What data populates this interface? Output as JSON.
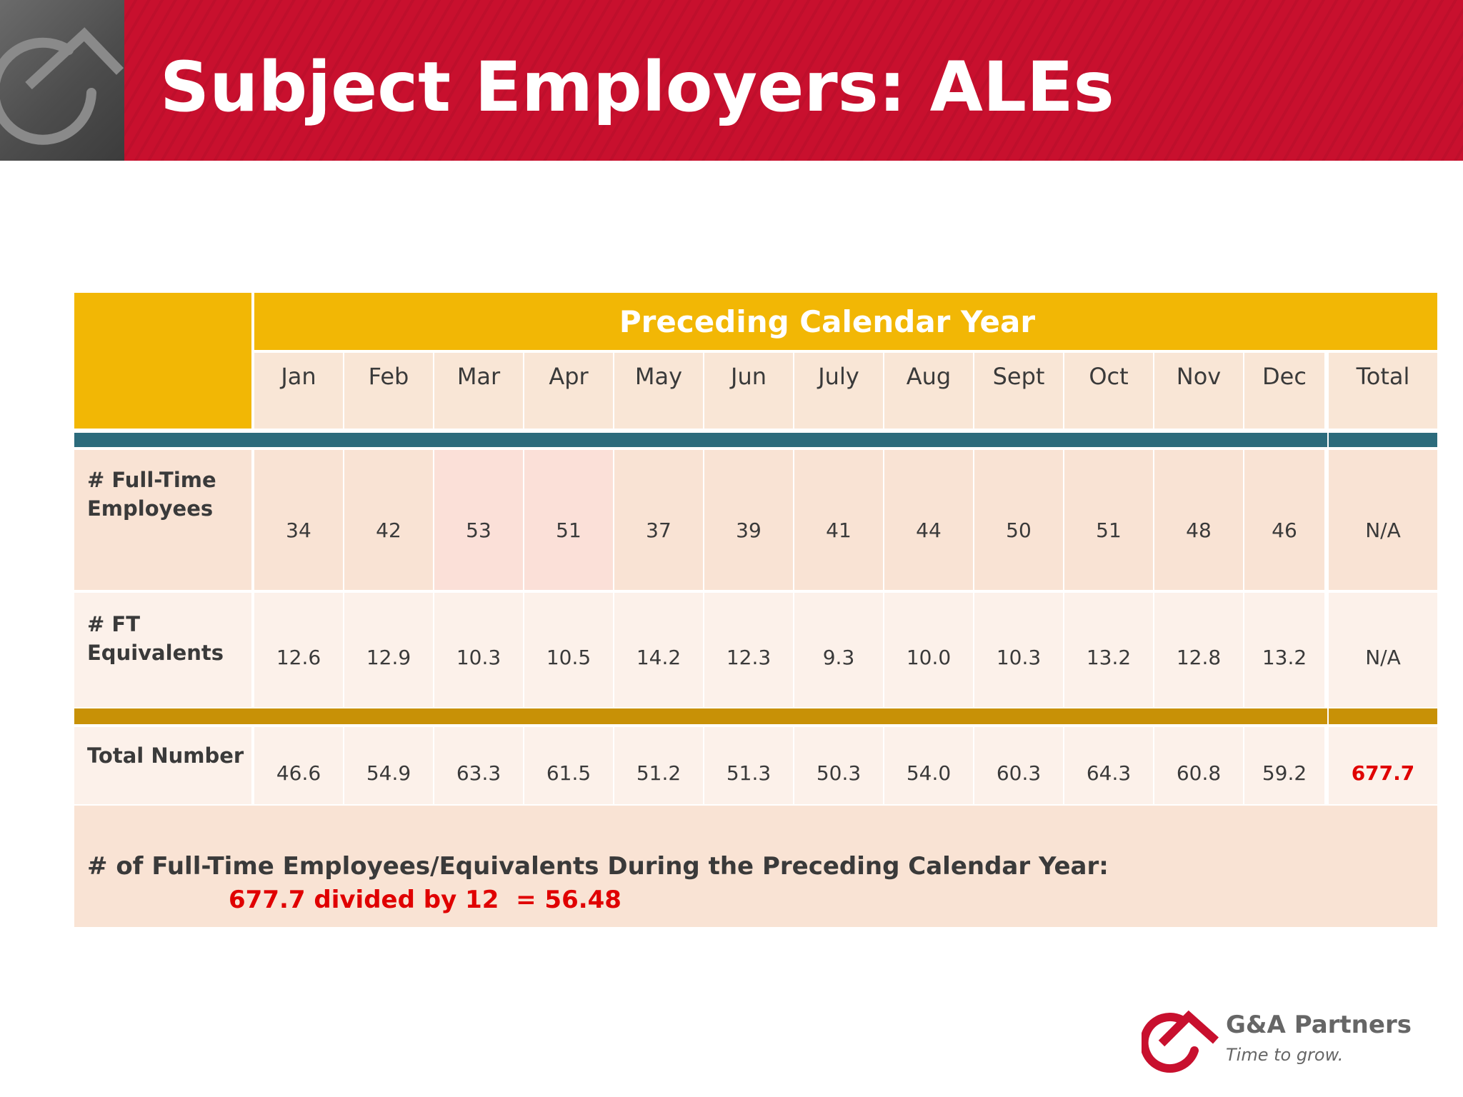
{
  "header": {
    "title": "Subject Employers: ALEs"
  },
  "table": {
    "band_label": "Preceding Calendar Year",
    "months": [
      "Jan",
      "Feb",
      "Mar",
      "Apr",
      "May",
      "Jun",
      "July",
      "Aug",
      "Sept",
      "Oct",
      "Nov",
      "Dec"
    ],
    "total_header": "Total",
    "rows": [
      {
        "label": "# Full-Time Employees",
        "values": [
          "34",
          "42",
          "53",
          "51",
          "37",
          "39",
          "41",
          "44",
          "50",
          "51",
          "48",
          "46"
        ],
        "total": "N/A"
      },
      {
        "label": "# FT Equivalents",
        "values": [
          "12.6",
          "12.9",
          "10.3",
          "10.5",
          "14.2",
          "12.3",
          "9.3",
          "10.0",
          "10.3",
          "13.2",
          "12.8",
          "13.2"
        ],
        "total": "N/A"
      },
      {
        "label": "Total Number",
        "values": [
          "46.6",
          "54.9",
          "63.3",
          "61.5",
          "51.2",
          "51.3",
          "50.3",
          "54.0",
          "60.3",
          "64.3",
          "60.8",
          "59.2"
        ],
        "total": "677.7"
      }
    ]
  },
  "summary": {
    "line": "# of Full-Time Employees/Equivalents During the Preceding Calendar Year:",
    "calculation": "677.7 divided by 12  = 56.48"
  },
  "brand": {
    "name": "G&A Partners",
    "tagline": "Time to grow."
  },
  "colors": {
    "header_red": "#c8102e",
    "band_gold": "#f2b705",
    "separator_teal": "#2c6b7c",
    "separator_gold": "#c89106",
    "highlight_red": "#e00000"
  }
}
